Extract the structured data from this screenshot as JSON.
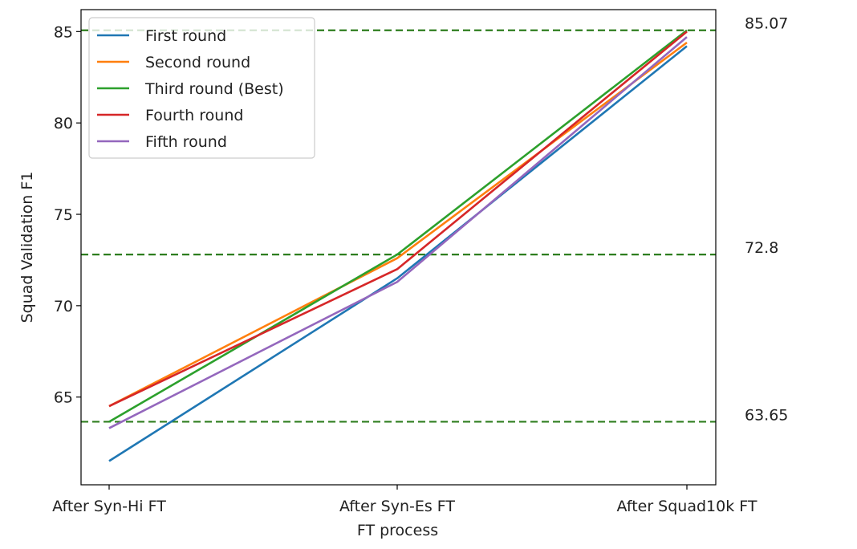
{
  "chart_data": {
    "type": "line",
    "categories": [
      "After Syn-Hi FT",
      "After Syn-Es FT",
      "After Squad10k FT"
    ],
    "xlabel": "FT process",
    "ylabel": "Squad Validation F1",
    "ylim": [
      60.2,
      86.2
    ],
    "yticks": [
      65,
      70,
      75,
      80,
      85
    ],
    "grid": false,
    "legend_position": "top-left",
    "series": [
      {
        "name": "First round",
        "color": "#1f77b4",
        "values": [
          61.5,
          71.5,
          84.2
        ]
      },
      {
        "name": "Second round",
        "color": "#ff7f0e",
        "values": [
          64.5,
          72.6,
          84.4
        ]
      },
      {
        "name": "Third round (Best)",
        "color": "#2ca02c",
        "values": [
          63.65,
          72.8,
          85.07
        ]
      },
      {
        "name": "Fourth round",
        "color": "#d62728",
        "values": [
          64.5,
          72.0,
          85.0
        ]
      },
      {
        "name": "Fifth round",
        "color": "#9467bd",
        "values": [
          63.3,
          71.3,
          84.7
        ]
      }
    ],
    "reference_lines": [
      {
        "value": 85.07,
        "label": "85.07",
        "color": "#2e7d1e"
      },
      {
        "value": 72.8,
        "label": "72.8",
        "color": "#2e7d1e"
      },
      {
        "value": 63.65,
        "label": "63.65",
        "color": "#2e7d1e"
      }
    ]
  }
}
